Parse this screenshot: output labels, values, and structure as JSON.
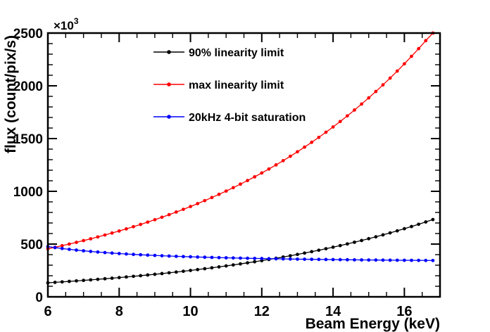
{
  "figure": {
    "background": "#ffffff",
    "frame_color": "#000000"
  },
  "chart_data": {
    "type": "line",
    "title": "",
    "xlabel": "Beam Energy (keV)",
    "ylabel": "flux (count/pix/s)",
    "y_axis_multiplier": {
      "base": "×10",
      "exp": "3"
    },
    "xlim": [
      6,
      17
    ],
    "ylim": [
      0,
      2500
    ],
    "xticks": [
      6,
      8,
      10,
      12,
      14,
      16
    ],
    "yticks": [
      0,
      500,
      1000,
      1500,
      2000,
      2500
    ],
    "x_minor_step": 0.5,
    "y_minor_step": 100,
    "grid": false,
    "legend_position": "top-left-inside",
    "marker_style": "filled-circle",
    "x": [
      6,
      6.2,
      6.4,
      6.6,
      6.8,
      7,
      7.2,
      7.4,
      7.6,
      7.8,
      8,
      8.2,
      8.4,
      8.6,
      8.8,
      9,
      9.2,
      9.4,
      9.6,
      9.8,
      10,
      10.2,
      10.4,
      10.6,
      10.8,
      11,
      11.2,
      11.4,
      11.6,
      11.8,
      12,
      12.2,
      12.4,
      12.6,
      12.8,
      13,
      13.2,
      13.4,
      13.6,
      13.8,
      14,
      14.2,
      14.4,
      14.6,
      14.8,
      15,
      15.2,
      15.4,
      15.6,
      15.8,
      16,
      16.2,
      16.4,
      16.6,
      16.8
    ],
    "series": [
      {
        "name": "90% linearity limit",
        "color": "#000000",
        "values": [
          133,
          137.3,
          141.7,
          146.2,
          150.9,
          155.8,
          160.8,
          165.9,
          171.2,
          176.7,
          182.4,
          188.3,
          194.3,
          200.5,
          207,
          213.6,
          220.5,
          227.6,
          234.9,
          242.4,
          250.2,
          258.2,
          266.5,
          275.1,
          283.9,
          293,
          302.4,
          312.1,
          322.2,
          332.5,
          343.2,
          354.2,
          365.5,
          377.3,
          389.4,
          401.9,
          414.8,
          428.1,
          441.9,
          456,
          470.7,
          485.8,
          501.4,
          517.5,
          534.1,
          551.2,
          568.9,
          587.2,
          606,
          625.5,
          645.6,
          666.3,
          687.7,
          709.7,
          732.5
        ]
      },
      {
        "name": "max linearity limit",
        "color": "#ff0000",
        "values": [
          455,
          469.6,
          484.7,
          500.2,
          516.3,
          532.9,
          550,
          567.6,
          585.9,
          604.7,
          624.1,
          644.1,
          664.8,
          686.1,
          708.2,
          730.9,
          754.4,
          778.6,
          803.6,
          829.4,
          856,
          883.5,
          911.9,
          941.1,
          971.3,
          1002.5,
          1034.7,
          1067.9,
          1102.2,
          1137.5,
          1174,
          1211.7,
          1250.6,
          1290.7,
          1332.2,
          1374.9,
          1419,
          1464.6,
          1511.6,
          1560.1,
          1610.2,
          1661.9,
          1715.2,
          1770.3,
          1827.1,
          1885.7,
          1946.3,
          2008.7,
          2073.2,
          2139.7,
          2208.4,
          2279.3,
          2352.4,
          2427.9,
          2500
        ]
      },
      {
        "name": "20kHz 4-bit saturation",
        "color": "#0000ff",
        "values": [
          476.3,
          466.7,
          458,
          450.1,
          442.8,
          436.2,
          430.1,
          424.5,
          419.3,
          414.5,
          410.1,
          406,
          402.2,
          398.7,
          395.4,
          392.3,
          389.4,
          386.7,
          384.1,
          381.7,
          379.5,
          377.4,
          375.4,
          373.5,
          371.7,
          370,
          368.4,
          366.9,
          365.5,
          364.1,
          362.8,
          361.6,
          360.4,
          359.3,
          358.3,
          357.2,
          356.3,
          355.3,
          354.5,
          353.6,
          352.8,
          352,
          351.3,
          350.6,
          349.9,
          349.2,
          348.6,
          348,
          347.4,
          346.8,
          346.3,
          345.8,
          345.3,
          344.8,
          344.3
        ]
      }
    ]
  }
}
